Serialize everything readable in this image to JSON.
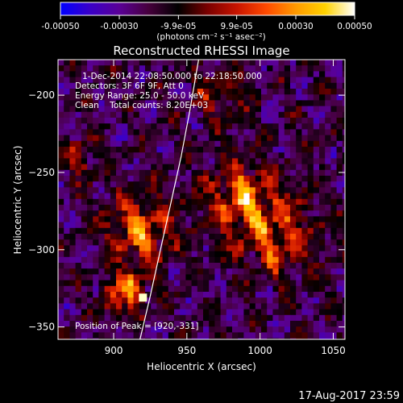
{
  "colorbar": {
    "tick_labels": [
      "-0.00050",
      "-0.00030",
      "-9.9e-05",
      "9.9e-05",
      "0.00030",
      "0.00050"
    ],
    "tick_values": [
      -0.0005,
      -0.0003,
      -9.9e-05,
      9.9e-05,
      0.0003,
      0.0005
    ],
    "range": [
      -0.0005,
      0.0005
    ],
    "units_label": "(photons cm⁻² s⁻¹ asec⁻²)",
    "stops": [
      "#0000ff",
      "#3a00c8",
      "#5a0096",
      "#46003c",
      "#000000",
      "#7a0000",
      "#c81400",
      "#ff4a00",
      "#ff9a00",
      "#ffd200",
      "#ffffff"
    ]
  },
  "header": {
    "lines": [
      "1-Dec-2014 22:08:50.000 to 22:18:50.000",
      "Detectors: 3F 6F 9F, Att 0",
      "Energy Range: 25.0 - 50.0 keV",
      "Clean    Total counts: 8.20E+03"
    ]
  },
  "peak_label": "Position of Peak = [920,-331]",
  "footer_timestamp": "17-Aug-2017 23:59",
  "chart_data": {
    "type": "heatmap",
    "title": "Reconstructed RHESSI Image",
    "xlabel": "Heliocentric X (arcsec)",
    "ylabel": "Heliocentric Y (arcsec)",
    "xlim": [
      862,
      1058
    ],
    "ylim": [
      -358,
      -177
    ],
    "x_ticks": [
      900,
      950,
      1000,
      1050
    ],
    "y_ticks": [
      -350,
      -300,
      -250,
      -200
    ],
    "x_tick_labels": [
      "900",
      "950",
      "1000",
      "1050"
    ],
    "y_tick_labels": [
      "−350",
      "−300",
      "−250",
      "−200"
    ],
    "peak": [
      920,
      -331
    ],
    "limb_curve": [
      [
        918,
        -358
      ],
      [
        925,
        -330
      ],
      [
        932,
        -300
      ],
      [
        939,
        -270
      ],
      [
        946,
        -240
      ],
      [
        952,
        -210
      ],
      [
        958,
        -177
      ]
    ],
    "grid": false,
    "colormap": "rhessi diverging (blue-purple-black-red-yellow-white)"
  }
}
